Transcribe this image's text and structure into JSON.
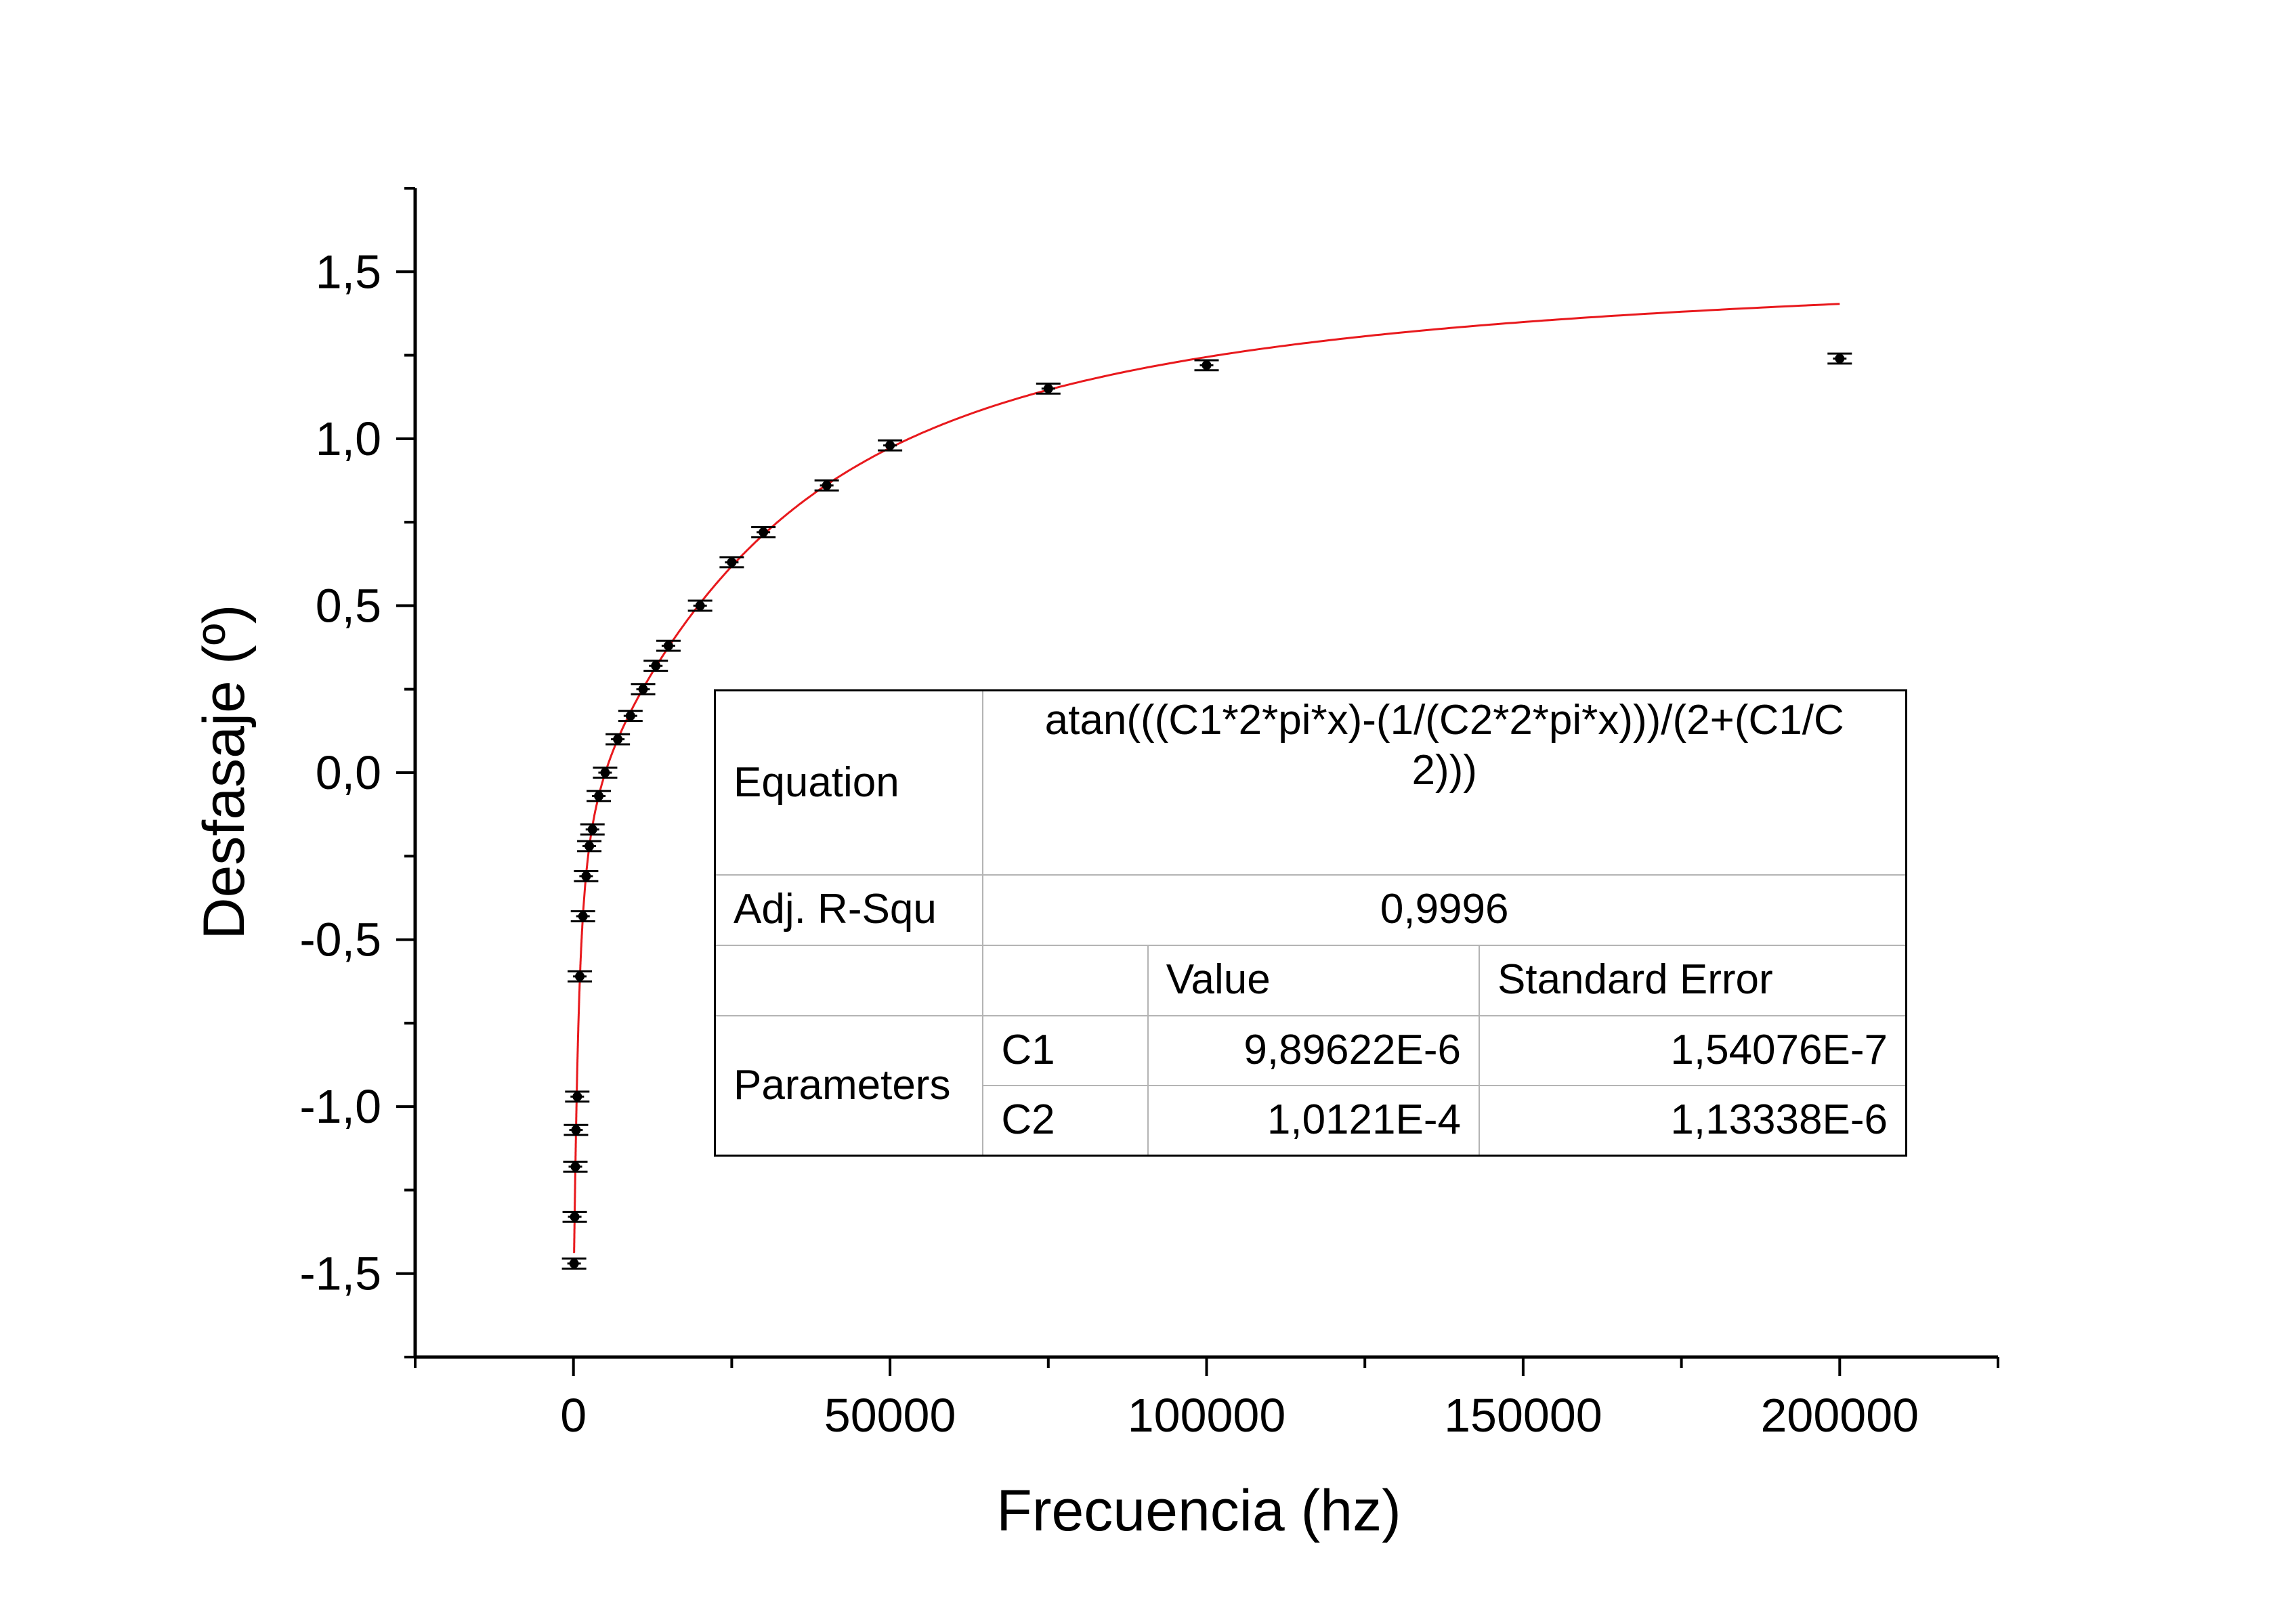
{
  "chart_data": {
    "type": "scatter",
    "xlabel": "Frecuencia (hz)",
    "ylabel": "Desfasaje (º)",
    "xlim": [
      -25000,
      225000
    ],
    "ylim": [
      -1.75,
      1.75
    ],
    "x_ticks": [
      "0",
      "50000",
      "100000",
      "150000",
      "200000"
    ],
    "x_tick_values": [
      0,
      50000,
      100000,
      150000,
      200000
    ],
    "y_ticks": [
      "-1,5",
      "-1,0",
      "-0,5",
      "0,0",
      "0,5",
      "1,0",
      "1,5"
    ],
    "y_tick_values": [
      -1.5,
      -1.0,
      -0.5,
      0.0,
      0.5,
      1.0,
      1.5
    ],
    "grid": false,
    "series": [
      {
        "kind": "data-with-error-bars",
        "color": "#000000",
        "x": [
          100,
          200,
          300,
          400,
          600,
          1000,
          1500,
          2000,
          2500,
          3000,
          4000,
          5000,
          7000,
          9000,
          11000,
          13000,
          15000,
          20000,
          25000,
          30000,
          40000,
          50000,
          75000,
          100000,
          200000
        ],
        "y": [
          -1.47,
          -1.33,
          -1.18,
          -1.07,
          -0.97,
          -0.61,
          -0.43,
          -0.31,
          -0.22,
          -0.17,
          -0.07,
          0.0,
          0.1,
          0.17,
          0.25,
          0.32,
          0.38,
          0.5,
          0.63,
          0.72,
          0.86,
          0.98,
          1.15,
          1.22,
          1.24
        ],
        "y_err": [
          0.015,
          0.015,
          0.015,
          0.015,
          0.015,
          0.015,
          0.015,
          0.015,
          0.015,
          0.015,
          0.015,
          0.015,
          0.015,
          0.015,
          0.015,
          0.015,
          0.015,
          0.015,
          0.015,
          0.015,
          0.015,
          0.015,
          0.015,
          0.015,
          0.015
        ]
      },
      {
        "kind": "fit-curve",
        "color": "#e8191d",
        "x_range": [
          100,
          200000
        ],
        "C1": 9.89622e-06,
        "C2": 0.00010121
      }
    ]
  },
  "fit_table": {
    "equation_label": "Equation",
    "equation_line1": "atan(((C1*2*pi*x)-(1/(C2*2*pi*x)))/(2+(C1/C",
    "equation_line2": "2)))",
    "adj_r_label": "Adj. R-Squ",
    "adj_r_value": "0,9996",
    "value_header": "Value",
    "stderr_header": "Standard Error",
    "parameters_label": "Parameters",
    "rows": [
      {
        "name": "C1",
        "value": "9,89622E-6",
        "stderr": "1,54076E-7"
      },
      {
        "name": "C2",
        "value": "1,0121E-4",
        "stderr": "1,13338E-6"
      }
    ]
  }
}
